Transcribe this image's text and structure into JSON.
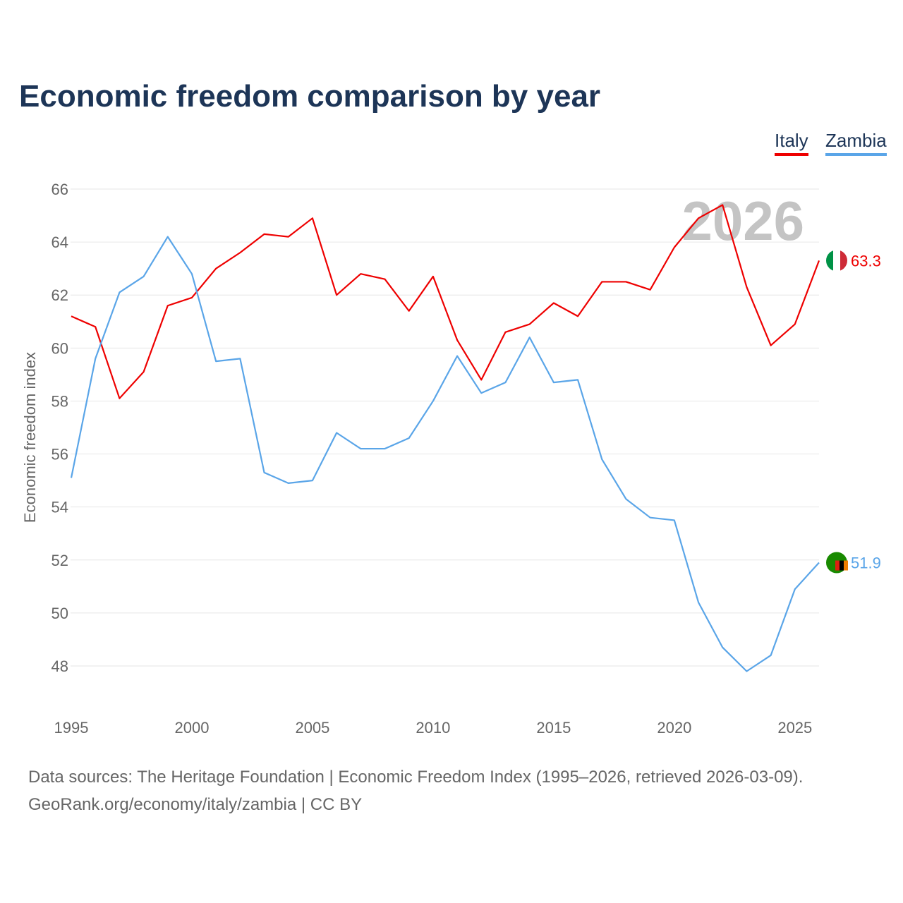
{
  "chart_data": {
    "type": "line",
    "title": "Economic freedom comparison by year",
    "xlabel": "",
    "ylabel": "Economic freedom index",
    "ylim": [
      46.5,
      66
    ],
    "xlim": [
      1995,
      2026
    ],
    "yticks": [
      48,
      50,
      52,
      54,
      56,
      58,
      60,
      62,
      64,
      66
    ],
    "xticks": [
      1995,
      2000,
      2005,
      2010,
      2015,
      2020,
      2025
    ],
    "year_label": "2026",
    "grid": true,
    "legend_placement": "top-right",
    "x": [
      1995,
      1996,
      1997,
      1998,
      1999,
      2000,
      2001,
      2002,
      2003,
      2004,
      2005,
      2006,
      2007,
      2008,
      2009,
      2010,
      2011,
      2012,
      2013,
      2014,
      2015,
      2016,
      2017,
      2018,
      2019,
      2020,
      2021,
      2022,
      2023,
      2024,
      2025,
      2026
    ],
    "series": [
      {
        "name": "Italy",
        "color": "#ee0000",
        "end_label": "63.3",
        "values": [
          61.2,
          60.8,
          58.1,
          59.1,
          61.6,
          61.9,
          63.0,
          63.6,
          64.3,
          64.2,
          64.9,
          62.0,
          62.8,
          62.6,
          61.4,
          62.7,
          60.3,
          58.8,
          60.6,
          60.9,
          61.7,
          61.2,
          62.5,
          62.5,
          62.2,
          63.8,
          64.9,
          65.4,
          62.3,
          60.1,
          60.9,
          63.3
        ]
      },
      {
        "name": "Zambia",
        "color": "#5aa5e8",
        "end_label": "51.9",
        "values": [
          55.1,
          59.6,
          62.1,
          62.7,
          64.2,
          62.8,
          59.5,
          59.6,
          55.3,
          54.9,
          55.0,
          56.8,
          56.2,
          56.2,
          56.6,
          58.0,
          59.7,
          58.3,
          58.7,
          60.4,
          58.7,
          58.8,
          55.8,
          54.3,
          53.6,
          53.5,
          50.4,
          48.7,
          47.8,
          48.4,
          50.9,
          51.9
        ]
      }
    ]
  },
  "footer": {
    "line1": "Data sources: The Heritage Foundation | Economic Freedom Index (1995–2026, retrieved 2026-03-09).",
    "line2": "GeoRank.org/economy/italy/zambia | CC BY"
  }
}
